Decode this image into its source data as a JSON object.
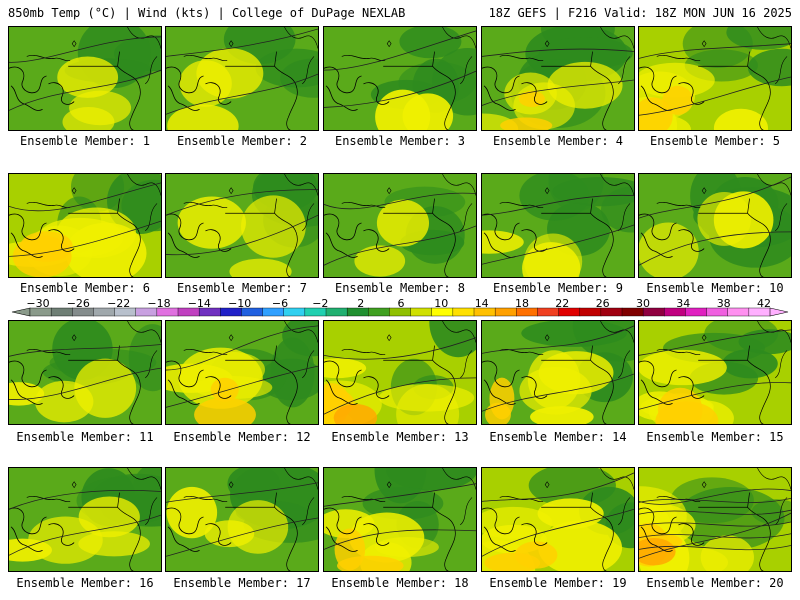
{
  "header": {
    "left": "850mb Temp (°C) | Wind (kts) | College of DuPage NEXLAB",
    "right": "18Z GEFS | F216 Valid: 18Z MON JUN 16 2025"
  },
  "colorbar": {
    "tick_labels": [
      "-30",
      "-26",
      "-22",
      "-18",
      "-14",
      "-10",
      "-6",
      "-2",
      "2",
      "6",
      "10",
      "14",
      "18",
      "22",
      "26",
      "30",
      "34",
      "38",
      "42"
    ],
    "colors": [
      "#8a9a8a",
      "#6f7f75",
      "#848c8c",
      "#a0a8ac",
      "#b8c0cc",
      "#c8a0e0",
      "#e070e0",
      "#c040c0",
      "#7030c0",
      "#2020c8",
      "#2060e0",
      "#30a0ff",
      "#30d0f0",
      "#20d0b0",
      "#20b070",
      "#209030",
      "#40a020",
      "#90c000",
      "#d0e000",
      "#ffff00",
      "#ffe000",
      "#ffc000",
      "#ffa000",
      "#ff7000",
      "#f04020",
      "#e00000",
      "#c00000",
      "#a00010",
      "#800000",
      "#900040",
      "#c00080",
      "#e020c0",
      "#f060e0",
      "#ff90f0",
      "#ffb0ff"
    ]
  },
  "ensemble_label_prefix": "Ensemble Member:",
  "members": [
    {
      "id": "1",
      "label": "Ensemble Member: 1"
    },
    {
      "id": "2",
      "label": "Ensemble Member: 2"
    },
    {
      "id": "3",
      "label": "Ensemble Member: 3"
    },
    {
      "id": "4",
      "label": "Ensemble Member: 4"
    },
    {
      "id": "5",
      "label": "Ensemble Member: 5"
    },
    {
      "id": "6",
      "label": "Ensemble Member: 6"
    },
    {
      "id": "7",
      "label": "Ensemble Member: 7"
    },
    {
      "id": "8",
      "label": "Ensemble Member: 8"
    },
    {
      "id": "9",
      "label": "Ensemble Member: 9"
    },
    {
      "id": "10",
      "label": "Ensemble Member: 10"
    },
    {
      "id": "11",
      "label": "Ensemble Member: 11"
    },
    {
      "id": "12",
      "label": "Ensemble Member: 12"
    },
    {
      "id": "13",
      "label": "Ensemble Member: 13"
    },
    {
      "id": "14",
      "label": "Ensemble Member: 14"
    },
    {
      "id": "15",
      "label": "Ensemble Member: 15"
    },
    {
      "id": "16",
      "label": "Ensemble Member: 16"
    },
    {
      "id": "17",
      "label": "Ensemble Member: 17"
    },
    {
      "id": "18",
      "label": "Ensemble Member: 18"
    },
    {
      "id": "19",
      "label": "Ensemble Member: 19"
    },
    {
      "id": "20",
      "label": "Ensemble Member: 20"
    }
  ],
  "map_colors": {
    "dark_green": "#2e8b1e",
    "green": "#5aaa1a",
    "yellow_green": "#a8d000",
    "yellow": "#f0f000",
    "gold": "#ffd000",
    "orange": "#ffa800"
  }
}
